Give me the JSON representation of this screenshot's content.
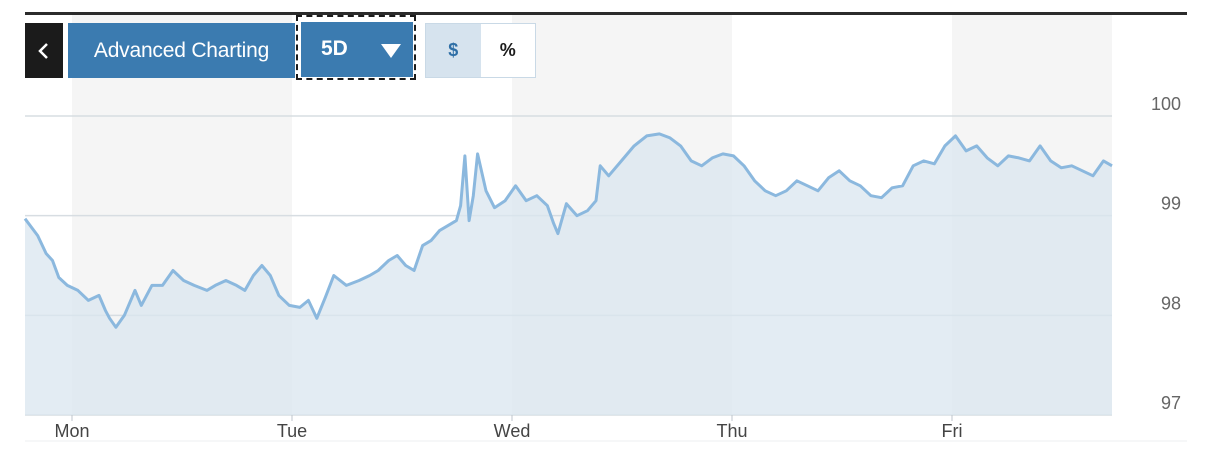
{
  "toolbar": {
    "back_icon": "chevron-left-icon",
    "advanced_label": "Advanced Charting",
    "range_value": "5D",
    "range_icon": "caret-down-icon",
    "unit_dollar": "$",
    "unit_percent": "%",
    "active_unit": "$"
  },
  "colors": {
    "line": "#8bb8de",
    "fill": "#d9e5ef",
    "accent": "#3b7bb0"
  },
  "chart_data": {
    "type": "area",
    "xlabel": "",
    "ylabel": "",
    "x_ticks": [
      "Mon",
      "Tue",
      "Wed",
      "Thu",
      "Fri"
    ],
    "y_ticks": [
      97,
      98,
      99,
      100
    ],
    "ylim": [
      97,
      100
    ],
    "xlim": [
      0,
      5
    ],
    "grid": "horizontal",
    "shaded_days": [
      "Mon",
      "Wed",
      "Fri"
    ],
    "series": [
      {
        "values": [
          [
            0.0,
            98.97
          ],
          [
            0.06,
            98.8
          ],
          [
            0.1,
            98.62
          ],
          [
            0.13,
            98.55
          ],
          [
            0.16,
            98.38
          ],
          [
            0.2,
            98.3
          ],
          [
            0.25,
            98.25
          ],
          [
            0.3,
            98.15
          ],
          [
            0.35,
            98.2
          ],
          [
            0.38,
            98.05
          ],
          [
            0.4,
            97.97
          ],
          [
            0.43,
            97.88
          ],
          [
            0.47,
            98.0
          ],
          [
            0.52,
            98.25
          ],
          [
            0.55,
            98.1
          ],
          [
            0.6,
            98.3
          ],
          [
            0.65,
            98.3
          ],
          [
            0.7,
            98.45
          ],
          [
            0.75,
            98.35
          ],
          [
            0.8,
            98.3
          ],
          [
            0.86,
            98.25
          ],
          [
            0.9,
            98.3
          ],
          [
            0.95,
            98.35
          ],
          [
            1.0,
            98.3
          ],
          [
            1.04,
            98.25
          ],
          [
            1.08,
            98.4
          ],
          [
            1.12,
            98.5
          ],
          [
            1.16,
            98.4
          ],
          [
            1.2,
            98.2
          ],
          [
            1.25,
            98.1
          ],
          [
            1.3,
            98.08
          ],
          [
            1.34,
            98.15
          ],
          [
            1.38,
            97.97
          ],
          [
            1.42,
            98.18
          ],
          [
            1.46,
            98.4
          ],
          [
            1.52,
            98.3
          ],
          [
            1.58,
            98.35
          ],
          [
            1.63,
            98.4
          ],
          [
            1.67,
            98.45
          ],
          [
            1.72,
            98.55
          ],
          [
            1.76,
            98.6
          ],
          [
            1.8,
            98.5
          ],
          [
            1.84,
            98.45
          ],
          [
            1.88,
            98.7
          ],
          [
            1.92,
            98.75
          ],
          [
            1.96,
            98.85
          ],
          [
            2.0,
            98.9
          ],
          [
            2.04,
            98.95
          ],
          [
            2.06,
            99.1
          ],
          [
            2.08,
            99.6
          ],
          [
            2.1,
            98.95
          ],
          [
            2.12,
            99.2
          ],
          [
            2.14,
            99.62
          ],
          [
            2.18,
            99.25
          ],
          [
            2.22,
            99.08
          ],
          [
            2.27,
            99.15
          ],
          [
            2.32,
            99.3
          ],
          [
            2.37,
            99.15
          ],
          [
            2.42,
            99.2
          ],
          [
            2.47,
            99.1
          ],
          [
            2.5,
            98.92
          ],
          [
            2.52,
            98.82
          ],
          [
            2.56,
            99.12
          ],
          [
            2.61,
            99.0
          ],
          [
            2.66,
            99.05
          ],
          [
            2.7,
            99.15
          ],
          [
            2.72,
            99.5
          ],
          [
            2.76,
            99.4
          ],
          [
            2.82,
            99.55
          ],
          [
            2.88,
            99.7
          ],
          [
            2.94,
            99.8
          ],
          [
            3.0,
            99.82
          ],
          [
            3.05,
            99.78
          ],
          [
            3.1,
            99.7
          ],
          [
            3.15,
            99.55
          ],
          [
            3.2,
            99.5
          ],
          [
            3.25,
            99.58
          ],
          [
            3.3,
            99.62
          ],
          [
            3.35,
            99.6
          ],
          [
            3.4,
            99.5
          ],
          [
            3.45,
            99.35
          ],
          [
            3.5,
            99.25
          ],
          [
            3.55,
            99.2
          ],
          [
            3.6,
            99.25
          ],
          [
            3.65,
            99.35
          ],
          [
            3.7,
            99.3
          ],
          [
            3.75,
            99.25
          ],
          [
            3.8,
            99.38
          ],
          [
            3.85,
            99.45
          ],
          [
            3.9,
            99.35
          ],
          [
            3.95,
            99.3
          ],
          [
            4.0,
            99.2
          ],
          [
            4.05,
            99.18
          ],
          [
            4.1,
            99.28
          ],
          [
            4.15,
            99.3
          ],
          [
            4.2,
            99.5
          ],
          [
            4.25,
            99.55
          ],
          [
            4.3,
            99.52
          ],
          [
            4.35,
            99.7
          ],
          [
            4.4,
            99.8
          ],
          [
            4.45,
            99.65
          ],
          [
            4.5,
            99.7
          ],
          [
            4.55,
            99.58
          ],
          [
            4.6,
            99.5
          ],
          [
            4.65,
            99.6
          ],
          [
            4.7,
            99.58
          ],
          [
            4.75,
            99.55
          ],
          [
            4.8,
            99.7
          ],
          [
            4.85,
            99.55
          ],
          [
            4.9,
            99.48
          ],
          [
            4.95,
            99.5
          ],
          [
            5.0,
            99.45
          ],
          [
            5.05,
            99.4
          ],
          [
            5.1,
            99.55
          ],
          [
            5.14,
            99.5
          ]
        ]
      }
    ]
  }
}
